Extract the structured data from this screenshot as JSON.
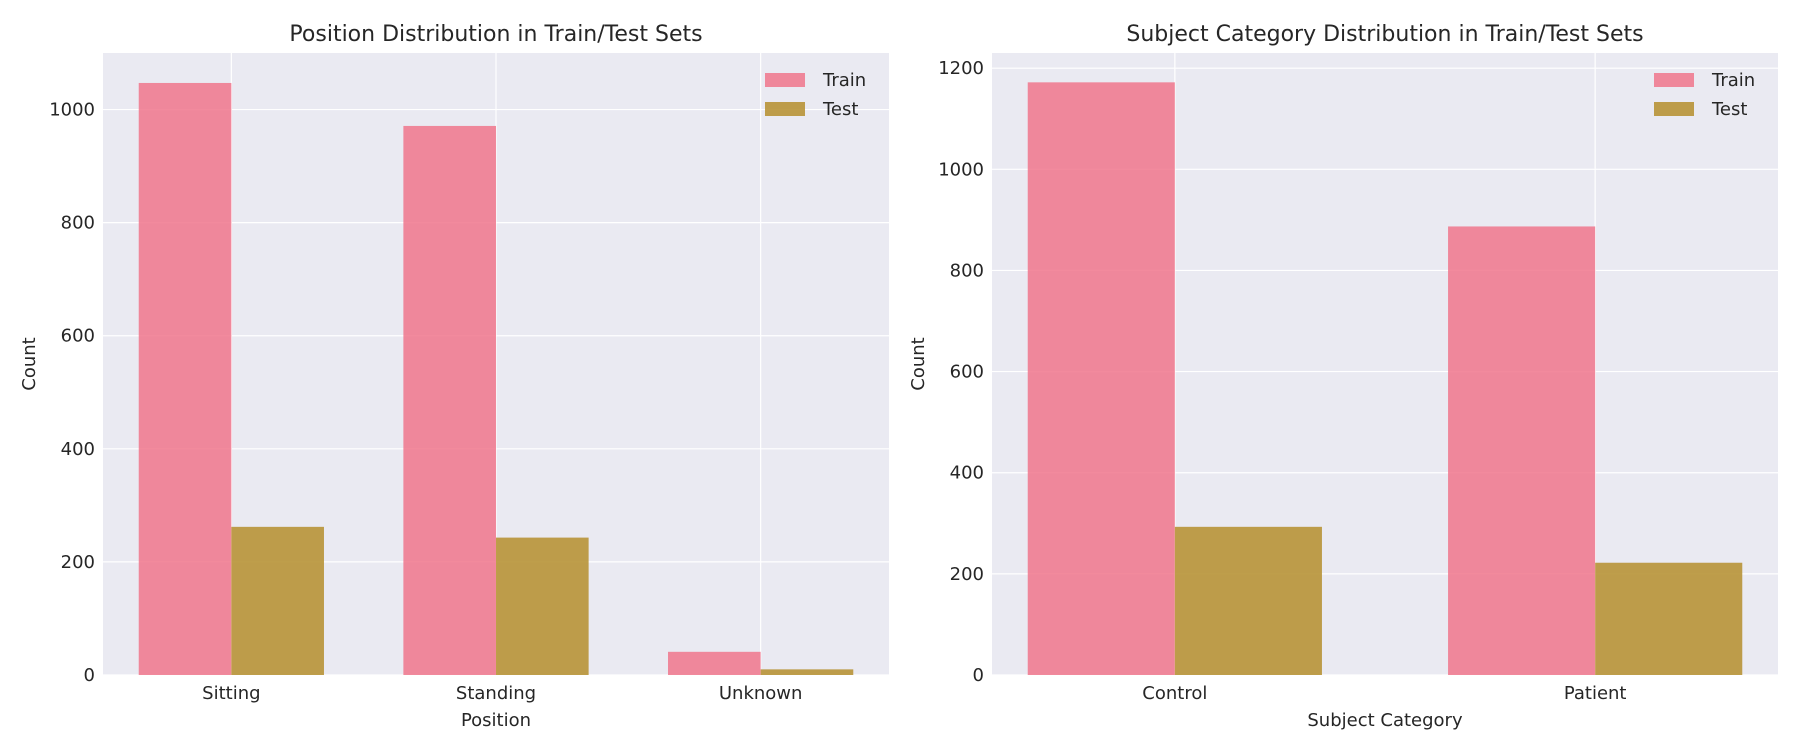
{
  "page": {
    "background": "#ffffff"
  },
  "colors": {
    "plot_background": "#eaeaf2",
    "grid": "#ffffff",
    "train": "#f0768c",
    "test": "#b89437"
  },
  "chart_data": [
    {
      "type": "bar",
      "title": "Position Distribution in Train/Test Sets",
      "xlabel": "Position",
      "ylabel": "Count",
      "categories": [
        "Sitting",
        "Standing",
        "Unknown"
      ],
      "series": [
        {
          "name": "Train",
          "values": [
            1047,
            971,
            41
          ]
        },
        {
          "name": "Test",
          "values": [
            262,
            243,
            10
          ]
        }
      ],
      "ylim": [
        0,
        1100
      ],
      "yticks": [
        0,
        200,
        400,
        600,
        800,
        1000
      ],
      "grid": true,
      "legend": "top-right"
    },
    {
      "type": "bar",
      "title": "Subject Category Distribution in Train/Test Sets",
      "xlabel": "Subject Category",
      "ylabel": "Count",
      "categories": [
        "Control",
        "Patient"
      ],
      "series": [
        {
          "name": "Train",
          "values": [
            1172,
            887
          ]
        },
        {
          "name": "Test",
          "values": [
            293,
            222
          ]
        }
      ],
      "ylim": [
        0,
        1230
      ],
      "yticks": [
        0,
        200,
        400,
        600,
        800,
        1000,
        1200
      ],
      "grid": true,
      "legend": "top-right"
    }
  ]
}
